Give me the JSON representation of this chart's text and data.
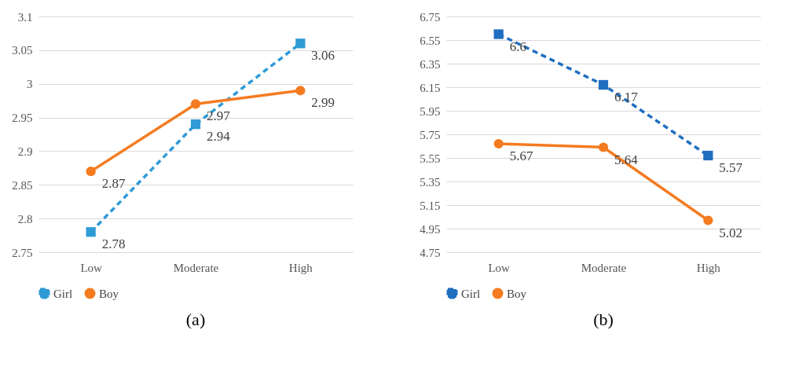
{
  "chart_data": [
    {
      "type": "line",
      "categories": [
        "Low",
        "Moderate",
        "High"
      ],
      "ylim": [
        2.75,
        3.1
      ],
      "yticks": [
        2.75,
        2.8,
        2.85,
        2.9,
        2.95,
        3,
        3.05,
        3.1
      ],
      "grid": "y",
      "legend": "bottom",
      "data_labels": true,
      "annotations": [
        "(a)"
      ],
      "series": [
        {
          "name": "Girl",
          "color": "#2e9bd6",
          "marker": "square",
          "line_style": "dashed",
          "values": [
            2.78,
            2.94,
            3.06
          ]
        },
        {
          "name": "Boy",
          "color": "#f47b20",
          "marker": "circle",
          "line_style": "solid",
          "values": [
            2.87,
            2.97,
            2.99
          ]
        }
      ]
    },
    {
      "type": "line",
      "categories": [
        "Low",
        "Moderate",
        "High"
      ],
      "ylim": [
        4.75,
        6.75
      ],
      "yticks": [
        4.75,
        4.95,
        5.15,
        5.35,
        5.55,
        5.75,
        5.95,
        6.15,
        6.35,
        6.55,
        6.75
      ],
      "grid": "y",
      "legend": "bottom",
      "data_labels": true,
      "annotations": [
        "(b)"
      ],
      "series": [
        {
          "name": "Girl",
          "color": "#1f6fc0",
          "marker": "square",
          "line_style": "dashed",
          "values": [
            6.6,
            6.17,
            5.57
          ]
        },
        {
          "name": "Boy",
          "color": "#f47b20",
          "marker": "circle",
          "line_style": "solid",
          "values": [
            5.67,
            5.64,
            5.02
          ]
        }
      ]
    }
  ]
}
